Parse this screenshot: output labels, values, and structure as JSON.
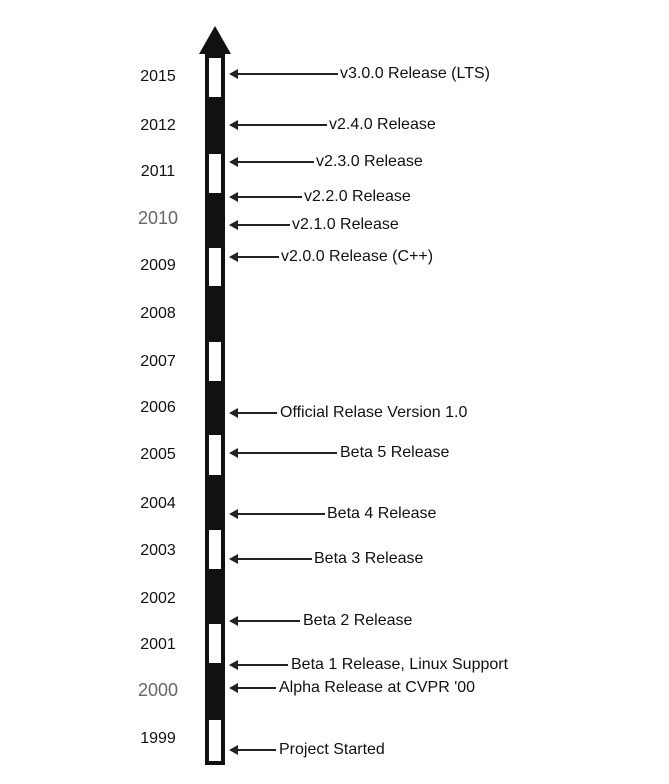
{
  "timeline": {
    "years": [
      {
        "label": "2015",
        "style": "normal"
      },
      {
        "label": "2012",
        "style": "normal"
      },
      {
        "label": "2011",
        "style": "normal"
      },
      {
        "label": "2010",
        "style": "outline"
      },
      {
        "label": "2009",
        "style": "normal"
      },
      {
        "label": "2008",
        "style": "normal"
      },
      {
        "label": "2007",
        "style": "normal"
      },
      {
        "label": "2006",
        "style": "normal"
      },
      {
        "label": "2005",
        "style": "normal"
      },
      {
        "label": "2004",
        "style": "normal"
      },
      {
        "label": "2003",
        "style": "normal"
      },
      {
        "label": "2002",
        "style": "normal"
      },
      {
        "label": "2001",
        "style": "normal"
      },
      {
        "label": "2000",
        "style": "outline"
      },
      {
        "label": "1999",
        "style": "normal"
      }
    ],
    "events": [
      {
        "label": "v3.0.0 Release (LTS)"
      },
      {
        "label": "v2.4.0 Release"
      },
      {
        "label": "v2.3.0 Release"
      },
      {
        "label": "v2.2.0 Release"
      },
      {
        "label": "v2.1.0 Release"
      },
      {
        "label": "v2.0.0 Release (C++)"
      },
      {
        "label": "Official Relase Version 1.0"
      },
      {
        "label": "Beta 5 Release"
      },
      {
        "label": "Beta 4 Release"
      },
      {
        "label": "Beta 3 Release"
      },
      {
        "label": "Beta 2 Release"
      },
      {
        "label": "Beta 1 Release, Linux Support"
      },
      {
        "label": "Alpha Release at CVPR '00"
      },
      {
        "label": "Project Started"
      }
    ]
  }
}
